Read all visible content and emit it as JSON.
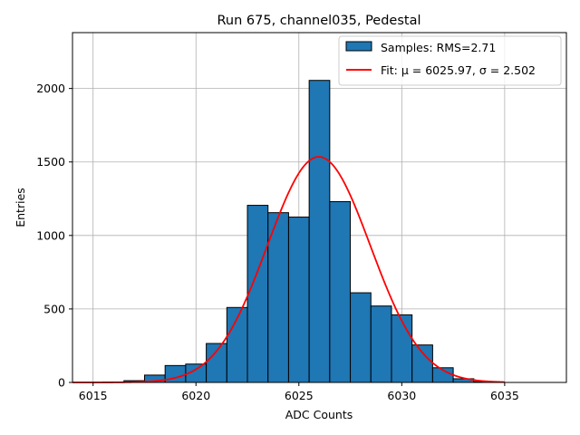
{
  "chart_data": {
    "type": "bar",
    "title": "Run 675, channel035, Pedestal",
    "xlabel": "ADC Counts",
    "ylabel": "Entries",
    "xlim": [
      6014,
      6038
    ],
    "ylim": [
      0,
      2380
    ],
    "x_ticks": [
      6015,
      6020,
      6025,
      6030,
      6035
    ],
    "y_ticks": [
      0,
      500,
      1000,
      1500,
      2000
    ],
    "grid": true,
    "legend_position": "top-right",
    "bin_width": 1,
    "bins": [
      {
        "x": 6017,
        "value": 12
      },
      {
        "x": 6018,
        "value": 50
      },
      {
        "x": 6019,
        "value": 115
      },
      {
        "x": 6020,
        "value": 125
      },
      {
        "x": 6021,
        "value": 265
      },
      {
        "x": 6022,
        "value": 510
      },
      {
        "x": 6023,
        "value": 1205
      },
      {
        "x": 6024,
        "value": 1155
      },
      {
        "x": 6025,
        "value": 1125
      },
      {
        "x": 6026,
        "value": 2055
      },
      {
        "x": 6027,
        "value": 1230
      },
      {
        "x": 6028,
        "value": 610
      },
      {
        "x": 6029,
        "value": 520
      },
      {
        "x": 6030,
        "value": 460
      },
      {
        "x": 6031,
        "value": 255
      },
      {
        "x": 6032,
        "value": 100
      },
      {
        "x": 6033,
        "value": 25
      },
      {
        "x": 6034,
        "value": 5
      }
    ],
    "series": [
      {
        "name": "Samples: RMS=2.71",
        "kind": "histogram",
        "color": "#1f77b4",
        "edgecolor": "#000000"
      },
      {
        "name": "Fit: μ = 6025.97, σ = 2.502",
        "kind": "line",
        "color": "#ff0000",
        "mu": 6025.97,
        "sigma": 2.502,
        "amplitude": 1535,
        "x_range": [
          6014,
          6035
        ]
      }
    ]
  }
}
